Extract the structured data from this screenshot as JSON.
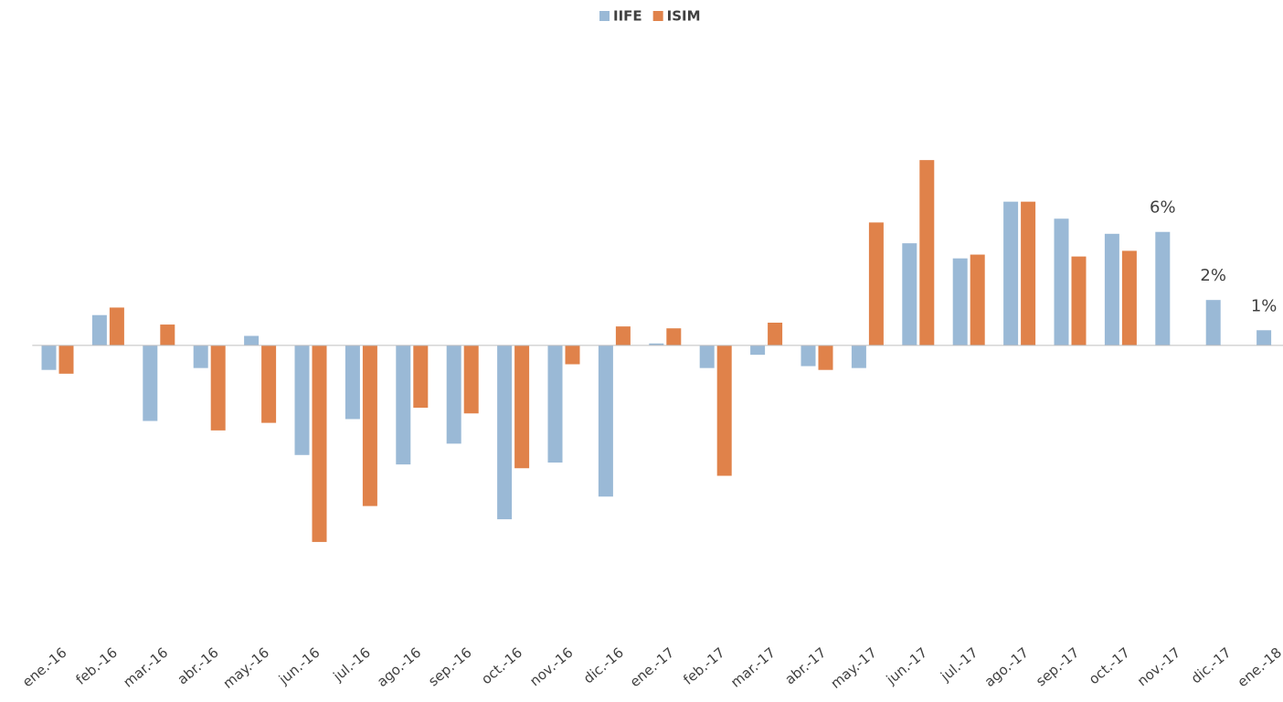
{
  "chart_data": {
    "type": "bar",
    "categories": [
      "ene.-16",
      "feb.-16",
      "mar.-16",
      "abr.-16",
      "may.-16",
      "jun.-16",
      "jul.-16",
      "ago.-16",
      "sep.-16",
      "oct.-16",
      "nov.-16",
      "dic.-16",
      "ene.-17",
      "feb.-17",
      "mar.-17",
      "abr.-17",
      "may.-17",
      "jun.-17",
      "jul.-17",
      "ago.-17",
      "sep.-17",
      "oct.-17",
      "nov.-17",
      "dic.-17",
      "ene.-18"
    ],
    "series": [
      {
        "name": "IIFE",
        "color": "#9ab9d6",
        "values": [
          -1.3,
          1.6,
          -4.0,
          -1.2,
          0.5,
          -5.8,
          -3.9,
          -6.3,
          -5.2,
          -9.2,
          -6.2,
          -8.0,
          0.1,
          -1.2,
          -0.5,
          -1.1,
          -1.2,
          5.4,
          4.6,
          7.6,
          6.7,
          5.9,
          6.0,
          2.4,
          0.8
        ],
        "value_labels": [
          null,
          null,
          null,
          null,
          null,
          null,
          null,
          null,
          null,
          null,
          null,
          null,
          null,
          null,
          null,
          null,
          null,
          null,
          null,
          null,
          null,
          null,
          "6%",
          "2%",
          "1%"
        ]
      },
      {
        "name": "ISIM",
        "color": "#e0824a",
        "values": [
          -1.5,
          2.0,
          1.1,
          -4.5,
          -4.1,
          -10.4,
          -8.5,
          -3.3,
          -3.6,
          -6.5,
          -1.0,
          1.0,
          0.9,
          -6.9,
          1.2,
          -1.3,
          6.5,
          9.8,
          4.8,
          7.6,
          4.7,
          5.0,
          null,
          null,
          null
        ]
      }
    ],
    "ylim": [
      -12,
      10
    ],
    "legend": "top"
  }
}
